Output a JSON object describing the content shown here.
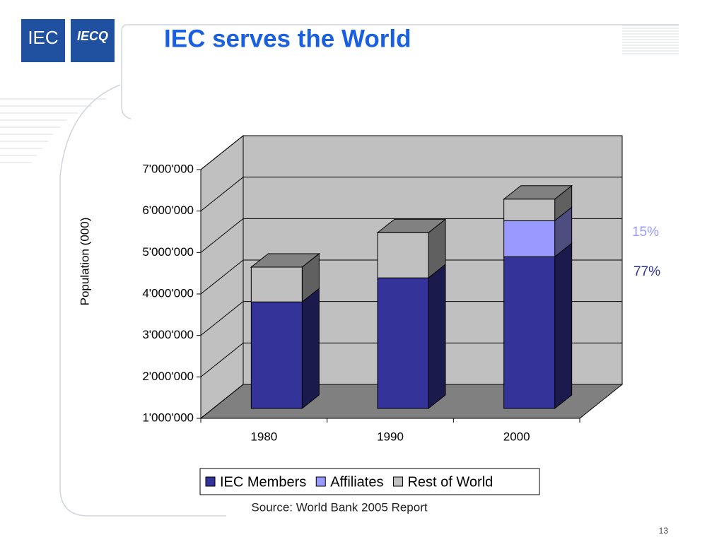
{
  "logos": [
    "IEC",
    "IECQ"
  ],
  "page_number": "13",
  "chart_data": {
    "type": "bar3d_stacked",
    "title": "IEC serves the World",
    "y_label": "Population (000)",
    "categories": [
      "1980",
      "1990",
      "2000"
    ],
    "series": [
      {
        "name": "IEC Members",
        "color": "#333399",
        "values": [
          3570000,
          4150000,
          4660000
        ]
      },
      {
        "name": "Affiliates",
        "color": "#9999ff",
        "values": [
          null,
          null,
          870000
        ]
      },
      {
        "name": "Rest of World",
        "color": "#c0c0c0",
        "values": [
          840000,
          1090000,
          520000
        ]
      }
    ],
    "ylim": [
      1000000,
      7000000
    ],
    "yticks": [
      {
        "value": 1000000,
        "label": "1'000'000"
      },
      {
        "value": 2000000,
        "label": "2'000'000"
      },
      {
        "value": 3000000,
        "label": "3'000'000"
      },
      {
        "value": 4000000,
        "label": "4'000'000"
      },
      {
        "value": 5000000,
        "label": "5'000'000"
      },
      {
        "value": 6000000,
        "label": "6'000'000"
      },
      {
        "value": 7000000,
        "label": "7'000'000"
      }
    ],
    "grid": true,
    "legend": "bottom",
    "annotations": [
      {
        "text": "15%",
        "color": "#9999ff"
      },
      {
        "text": "77%",
        "color": "#333399"
      }
    ],
    "source": "Source: World Bank 2005 Report"
  }
}
